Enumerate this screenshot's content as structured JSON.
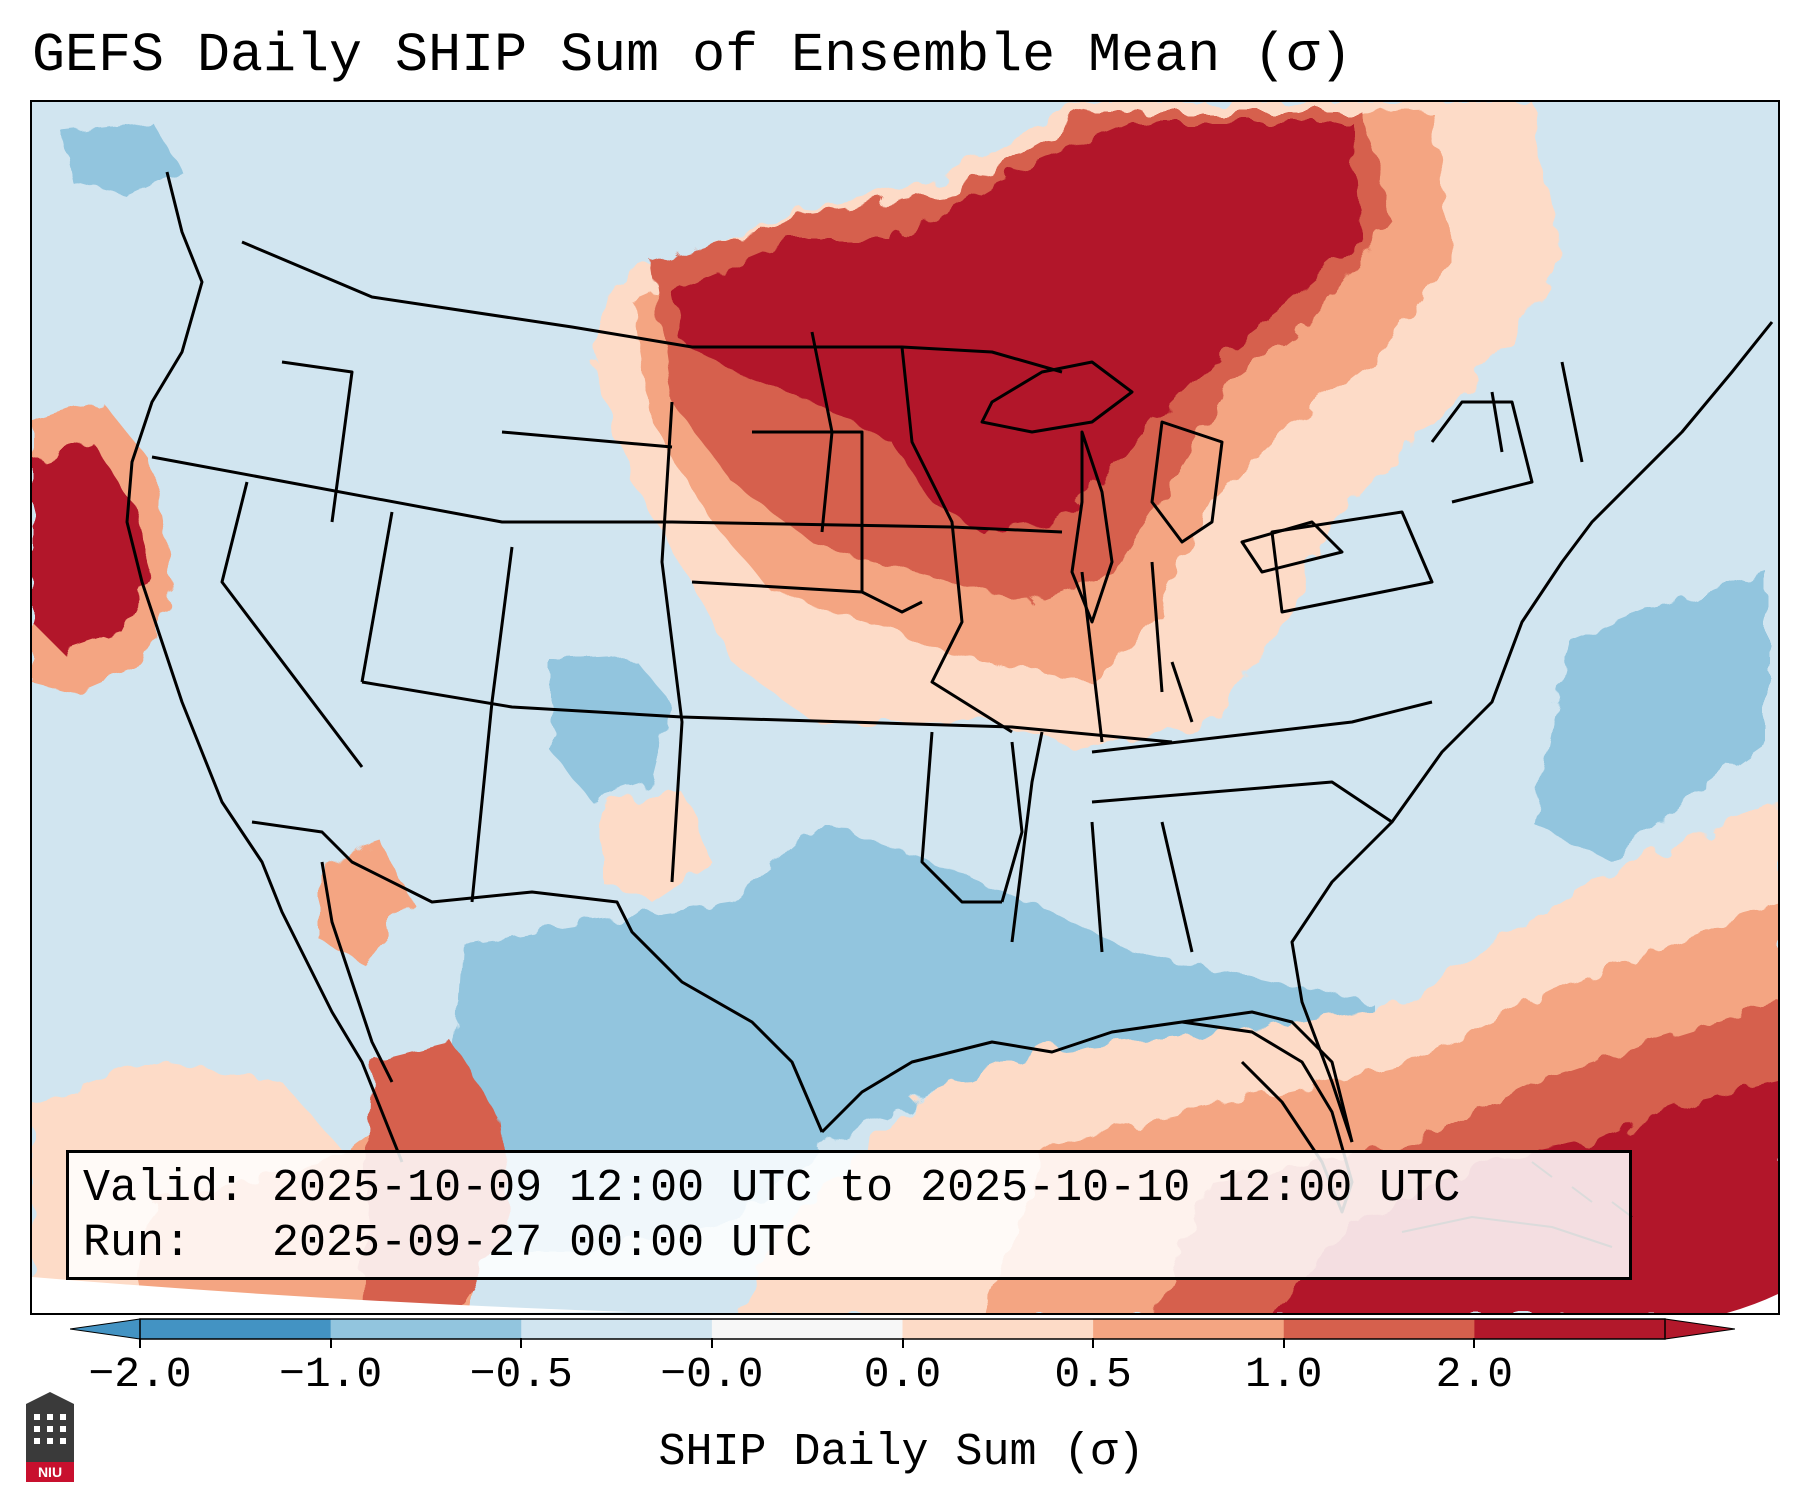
{
  "title": "GEFS Daily SHIP Sum of Ensemble Mean (σ)",
  "info": {
    "valid_label": "Valid:",
    "valid_value": "2025-10-09 12:00 UTC to 2025-10-10 12:00 UTC",
    "run_label": "Run:",
    "run_value": "2025-09-27 00:00 UTC"
  },
  "colorbar": {
    "label": "SHIP Daily Sum (σ)",
    "ticks": [
      "−2.0",
      "−1.0",
      "−0.5",
      "−0.0",
      "0.0",
      "0.5",
      "1.0",
      "2.0"
    ],
    "colors": [
      "#4393c3",
      "#92c5de",
      "#d1e5f0",
      "#f7f7f7",
      "#fddbc7",
      "#f4a582",
      "#d6604d",
      "#b2182b"
    ],
    "extend": "both"
  },
  "logo": {
    "text": "NIU"
  },
  "colors": {
    "background": "#d1e5f0",
    "boundary": "#000000"
  }
}
